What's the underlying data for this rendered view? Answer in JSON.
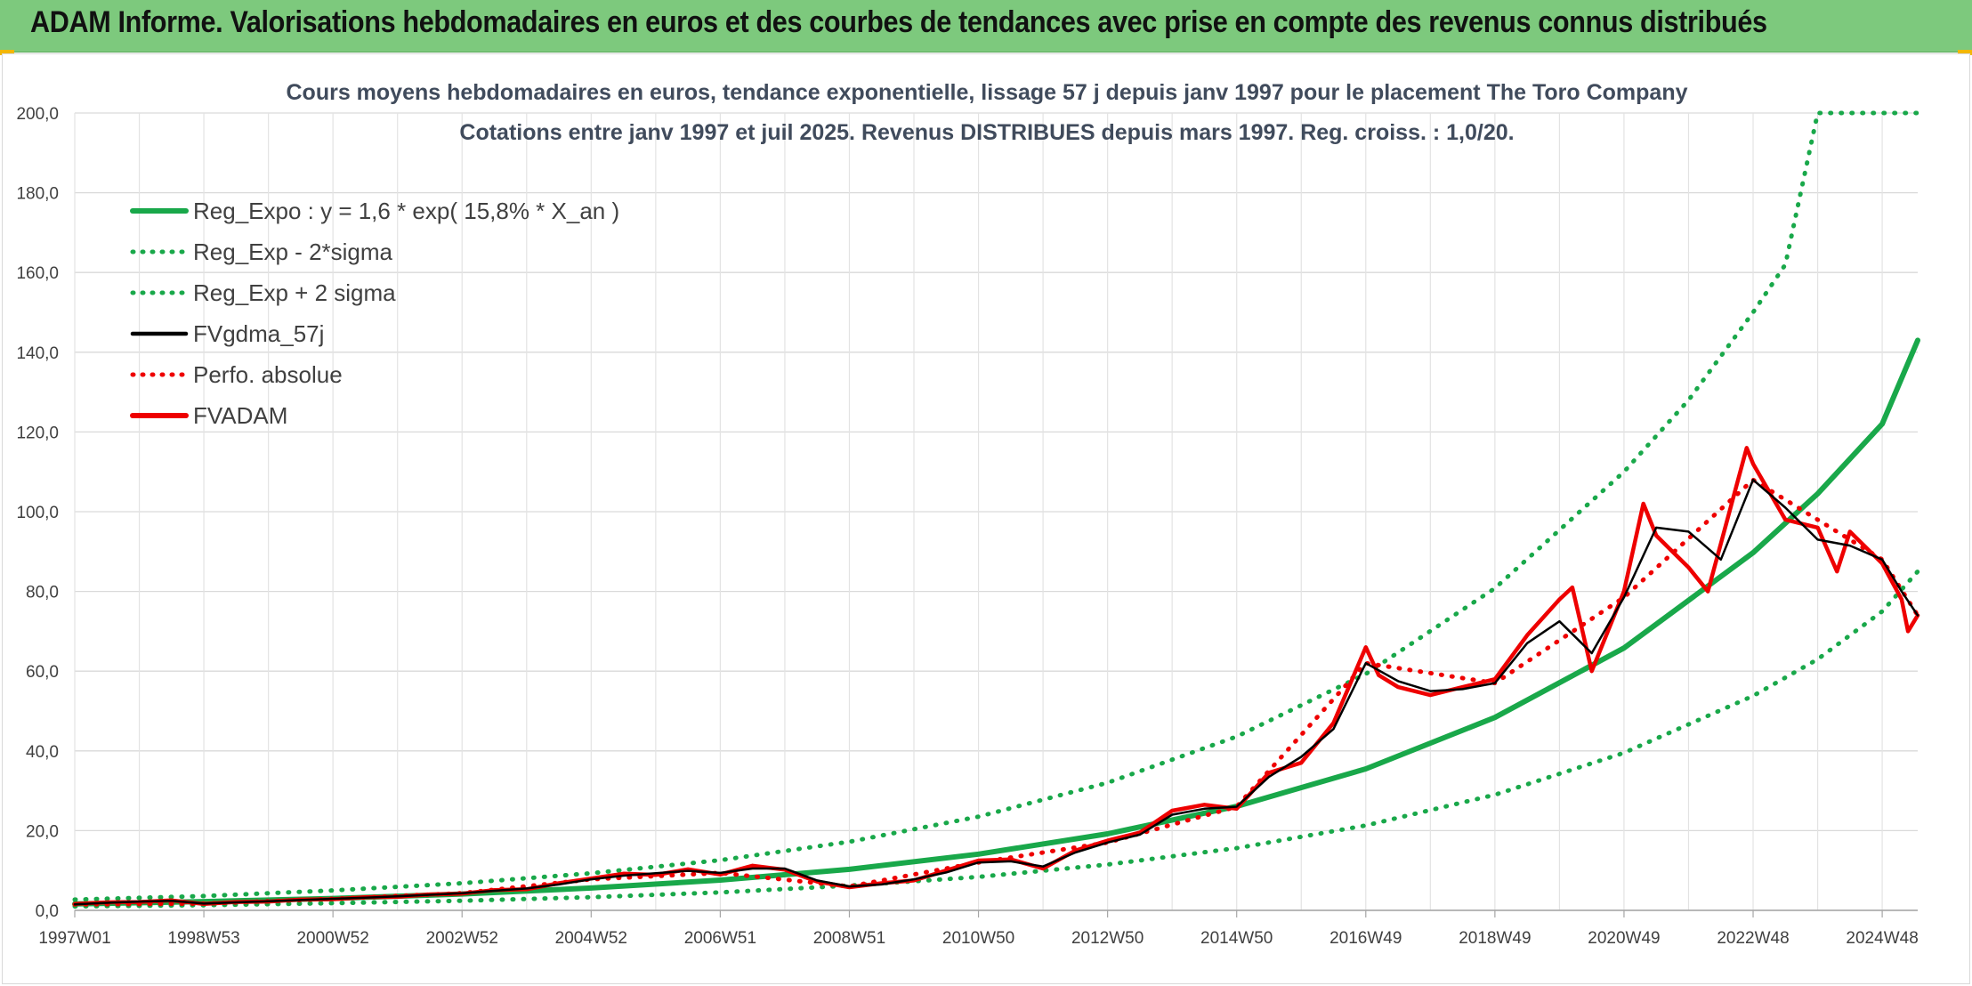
{
  "header": {
    "title": "ADAM Informe. Valorisations hebdomadaires en euros et des courbes de tendances avec prise en compte des revenus connus distribués"
  },
  "colors": {
    "banner": "#7dc97d",
    "reg_expo": "#19a84a",
    "fvgdma": "#000000",
    "fvadam": "#ee0000",
    "perfo": "#ee0000"
  },
  "chart_data": {
    "type": "line",
    "title": "Cours moyens hebdomadaires en euros, tendance exponentielle, lissage 57 j depuis janv 1997 pour le placement The Toro Company",
    "subtitle": "Cotations entre janv 1997 et juil 2025. Revenus DISTRIBUES depuis mars 1997. Reg. croiss. : 1,0/20.",
    "xlabel": "",
    "ylabel": "",
    "xlim": [
      1997.0,
      2025.55
    ],
    "ylim": [
      0,
      200
    ],
    "yticks": [
      "0,0",
      "20,0",
      "40,0",
      "60,0",
      "80,0",
      "100,0",
      "120,0",
      "140,0",
      "160,0",
      "180,0",
      "200,0"
    ],
    "xticks": [
      {
        "label": "1997W01",
        "x": 1997.0
      },
      {
        "label": "1998W53",
        "x": 1999.0
      },
      {
        "label": "2000W52",
        "x": 2001.0
      },
      {
        "label": "2002W52",
        "x": 2003.0
      },
      {
        "label": "2004W52",
        "x": 2005.0
      },
      {
        "label": "2006W51",
        "x": 2007.0
      },
      {
        "label": "2008W51",
        "x": 2009.0
      },
      {
        "label": "2010W50",
        "x": 2011.0
      },
      {
        "label": "2012W50",
        "x": 2013.0
      },
      {
        "label": "2014W50",
        "x": 2015.0
      },
      {
        "label": "2016W49",
        "x": 2017.0
      },
      {
        "label": "2018W49",
        "x": 2019.0
      },
      {
        "label": "2020W49",
        "x": 2021.0
      },
      {
        "label": "2022W48",
        "x": 2023.0
      },
      {
        "label": "2024W48",
        "x": 2025.0
      }
    ],
    "grid": true,
    "legend_position": "top-left",
    "legend": [
      {
        "label": "Reg_Expo : y = 1,6 * exp( 15,8% *  X_an )",
        "style": "solid-thick",
        "color": "#19a84a"
      },
      {
        "label": "Reg_Exp - 2*sigma",
        "style": "dotted",
        "color": "#19a84a"
      },
      {
        "label": "Reg_Exp + 2 sigma",
        "style": "dotted",
        "color": "#19a84a"
      },
      {
        "label": "FVgdma_57j",
        "style": "solid",
        "color": "#000000"
      },
      {
        "label": "Perfo. absolue",
        "style": "dotted",
        "color": "#ee0000"
      },
      {
        "label": "FVADAM",
        "style": "solid-thick",
        "color": "#ee0000"
      }
    ],
    "series": [
      {
        "name": "Reg_Expo : y = 1,6 * exp( 15,8% *  X_an )",
        "color": "#19a84a",
        "style": "solid",
        "x": [
          1997.0,
          1999.0,
          2001.0,
          2003.0,
          2005.0,
          2007.0,
          2009.0,
          2011.0,
          2013.0,
          2015.0,
          2017.0,
          2019.0,
          2021.0,
          2023.0,
          2024.0,
          2025.0,
          2025.55
        ],
        "y": [
          1.6,
          2.2,
          3.0,
          4.1,
          5.6,
          7.6,
          10.3,
          14.1,
          19.2,
          26.1,
          35.5,
          48.4,
          65.8,
          89.7,
          104.5,
          122.0,
          143.0
        ]
      },
      {
        "name": "Reg_Exp - 2*sigma",
        "color": "#19a84a",
        "style": "dotted",
        "x": [
          1997.0,
          1999.0,
          2001.0,
          2003.0,
          2005.0,
          2007.0,
          2009.0,
          2011.0,
          2013.0,
          2015.0,
          2017.0,
          2019.0,
          2021.0,
          2023.0,
          2024.0,
          2025.0,
          2025.55
        ],
        "y": [
          1.0,
          1.3,
          1.8,
          2.4,
          3.3,
          4.5,
          6.2,
          8.4,
          11.5,
          15.6,
          21.3,
          29.0,
          39.5,
          53.8,
          63.0,
          75.0,
          85.0
        ]
      },
      {
        "name": "Reg_Exp + 2 sigma",
        "color": "#19a84a",
        "style": "dotted",
        "x": [
          1997.0,
          1999.0,
          2001.0,
          2003.0,
          2005.0,
          2007.0,
          2009.0,
          2011.0,
          2013.0,
          2015.0,
          2017.0,
          2019.0,
          2021.0,
          2022.0,
          2023.0,
          2023.5,
          2024.0,
          2025.55
        ],
        "y": [
          2.7,
          3.6,
          5.0,
          6.8,
          9.3,
          12.6,
          17.2,
          23.5,
          32.0,
          43.6,
          59.3,
          80.8,
          110.0,
          128.0,
          150.0,
          162.0,
          200.0,
          200.0
        ]
      },
      {
        "name": "FVgdma_57j",
        "color": "#000000",
        "style": "solid",
        "x": [
          1997.0,
          1997.5,
          1998.0,
          1998.5,
          1999.0,
          1999.5,
          2000.0,
          2000.5,
          2001.0,
          2001.5,
          2002.0,
          2002.5,
          2003.0,
          2003.5,
          2004.0,
          2004.5,
          2005.0,
          2005.5,
          2006.0,
          2006.5,
          2007.0,
          2007.5,
          2008.0,
          2008.5,
          2009.0,
          2009.5,
          2010.0,
          2010.5,
          2011.0,
          2011.5,
          2012.0,
          2012.5,
          2013.0,
          2013.5,
          2014.0,
          2014.5,
          2015.0,
          2015.5,
          2016.0,
          2016.5,
          2017.0,
          2017.5,
          2018.0,
          2018.5,
          2019.0,
          2019.5,
          2020.0,
          2020.5,
          2021.0,
          2021.5,
          2022.0,
          2022.5,
          2023.0,
          2023.5,
          2024.0,
          2024.5,
          2025.0,
          2025.3,
          2025.55
        ],
        "y": [
          1.5,
          1.9,
          2.2,
          2.4,
          1.7,
          2.0,
          2.3,
          2.6,
          2.9,
          3.2,
          3.5,
          3.9,
          4.3,
          4.9,
          5.5,
          6.5,
          7.8,
          8.7,
          9.3,
          9.9,
          9.4,
          10.5,
          10.5,
          7.5,
          6.0,
          6.5,
          7.8,
          9.5,
          12.0,
          12.3,
          11.0,
          14.5,
          17.0,
          19.0,
          24.0,
          25.5,
          26.0,
          33.5,
          38.5,
          45.5,
          62.0,
          57.5,
          55.0,
          55.5,
          57.0,
          67.0,
          72.5,
          64.5,
          78.5,
          96.0,
          95.0,
          88.0,
          108.0,
          101.0,
          93.0,
          91.5,
          88.0,
          80.0,
          74.0
        ]
      },
      {
        "name": "Perfo. absolue",
        "color": "#ee0000",
        "style": "dotted",
        "x": [
          1997.0,
          1999.0,
          2001.0,
          2003.0,
          2005.0,
          2007.0,
          2009.0,
          2011.0,
          2013.0,
          2015.0,
          2017.0,
          2019.0,
          2021.0,
          2023.0,
          2025.0,
          2025.55
        ],
        "y": [
          1.5,
          1.7,
          2.9,
          4.3,
          7.8,
          9.4,
          6.0,
          12.0,
          17.0,
          26.0,
          62.0,
          57.0,
          78.5,
          108.0,
          88.0,
          74.0
        ]
      },
      {
        "name": "FVADAM",
        "color": "#ee0000",
        "style": "solid",
        "x": [
          1997.0,
          1997.5,
          1998.0,
          1998.5,
          1999.0,
          1999.5,
          2000.0,
          2000.5,
          2001.0,
          2001.5,
          2002.0,
          2002.5,
          2003.0,
          2003.5,
          2004.0,
          2004.5,
          2005.0,
          2005.5,
          2006.0,
          2006.5,
          2007.0,
          2007.5,
          2008.0,
          2008.5,
          2009.0,
          2009.5,
          2010.0,
          2010.5,
          2011.0,
          2011.5,
          2012.0,
          2012.5,
          2013.0,
          2013.5,
          2014.0,
          2014.5,
          2015.0,
          2015.5,
          2016.0,
          2016.5,
          2017.0,
          2017.2,
          2017.5,
          2018.0,
          2018.5,
          2019.0,
          2019.5,
          2020.0,
          2020.2,
          2020.5,
          2021.0,
          2021.3,
          2021.5,
          2022.0,
          2022.3,
          2022.5,
          2022.9,
          2023.0,
          2023.5,
          2024.0,
          2024.3,
          2024.5,
          2025.0,
          2025.3,
          2025.4,
          2025.55
        ],
        "y": [
          1.6,
          2.0,
          2.1,
          2.5,
          1.6,
          2.1,
          2.2,
          2.7,
          2.8,
          3.3,
          3.4,
          4.0,
          4.2,
          5.1,
          5.3,
          6.8,
          8.0,
          9.2,
          8.9,
          10.3,
          9.0,
          11.2,
          10.2,
          7.2,
          5.8,
          6.8,
          7.5,
          10.0,
          12.5,
          12.8,
          10.5,
          15.0,
          17.5,
          19.5,
          25.0,
          26.5,
          25.5,
          34.5,
          37.0,
          47.0,
          66.0,
          59.0,
          56.0,
          54.0,
          56.0,
          58.0,
          69.0,
          78.0,
          81.0,
          60.0,
          80.0,
          102.0,
          94.0,
          86.0,
          80.0,
          92.0,
          116.0,
          112.0,
          98.0,
          96.0,
          85.0,
          95.0,
          87.0,
          78.0,
          70.0,
          74.0
        ]
      }
    ]
  }
}
